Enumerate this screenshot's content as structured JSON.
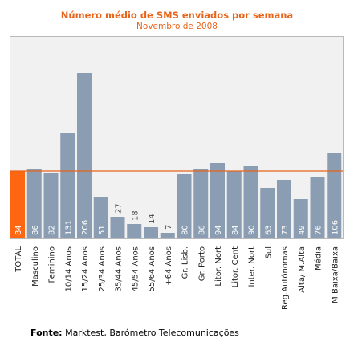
{
  "chart_data": {
    "type": "bar",
    "title": "Número médio de SMS enviados por semana",
    "subtitle": "Novembro de 2008",
    "categories": [
      "TOTAL",
      "Masculino",
      "Feminino",
      "10/14 Anos",
      "15/24 Anos",
      "25/34 Anos",
      "35/44 Anos",
      "45/54 Anos",
      "55/64 Anos",
      "+64 Anos",
      "Gr. Lisb.",
      "Gr. Porto",
      "Litor. Nort",
      "Litor. Cent",
      "Inter. Nort",
      "Sul",
      "Reg.Autónomas",
      "Alta/ M.Alta",
      "Média",
      "M.Baixa/Baixa"
    ],
    "values": [
      84,
      86,
      82,
      131,
      206,
      51,
      27,
      18,
      14,
      7,
      80,
      86,
      94,
      84,
      90,
      63,
      73,
      49,
      76,
      106
    ],
    "value_labels": [
      "84",
      "86",
      "82",
      "131",
      "206",
      "51",
      "27",
      "18",
      "14",
      "7",
      "80",
      "86",
      "94",
      "84",
      "90",
      "63",
      "73",
      "49",
      "76",
      "106"
    ],
    "highlight_index": 0,
    "reference_line": 84,
    "ylim": [
      0,
      230
    ],
    "grid": false,
    "colors": {
      "bar": "#8a9db2",
      "highlight": "#ff6611",
      "reference_line": "#e8641b",
      "label_on_bar": "#ffffff",
      "label_above_bar": "#444444"
    }
  },
  "footer": {
    "source_label": "Fonte:",
    "source_text": " Marktest, Barómetro Telecomunicações"
  }
}
